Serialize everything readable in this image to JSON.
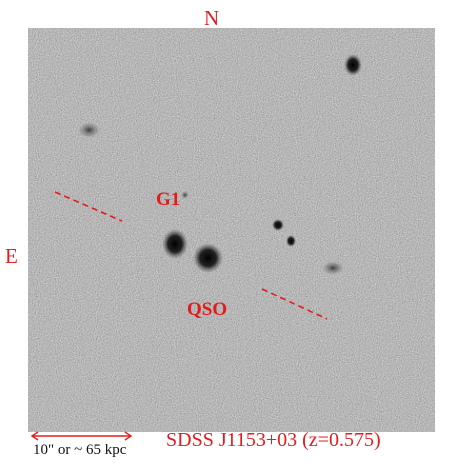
{
  "compass": {
    "north": "N",
    "east": "E"
  },
  "labels": {
    "g1": "G1",
    "qso": "QSO"
  },
  "scale_bar": {
    "text": "10\" or ~ 65 kpc"
  },
  "title": "SDSS J1153+03 (z=0.575)",
  "colors": {
    "annotation": "#e41b1b",
    "background_sky": "#a9a9a9"
  }
}
